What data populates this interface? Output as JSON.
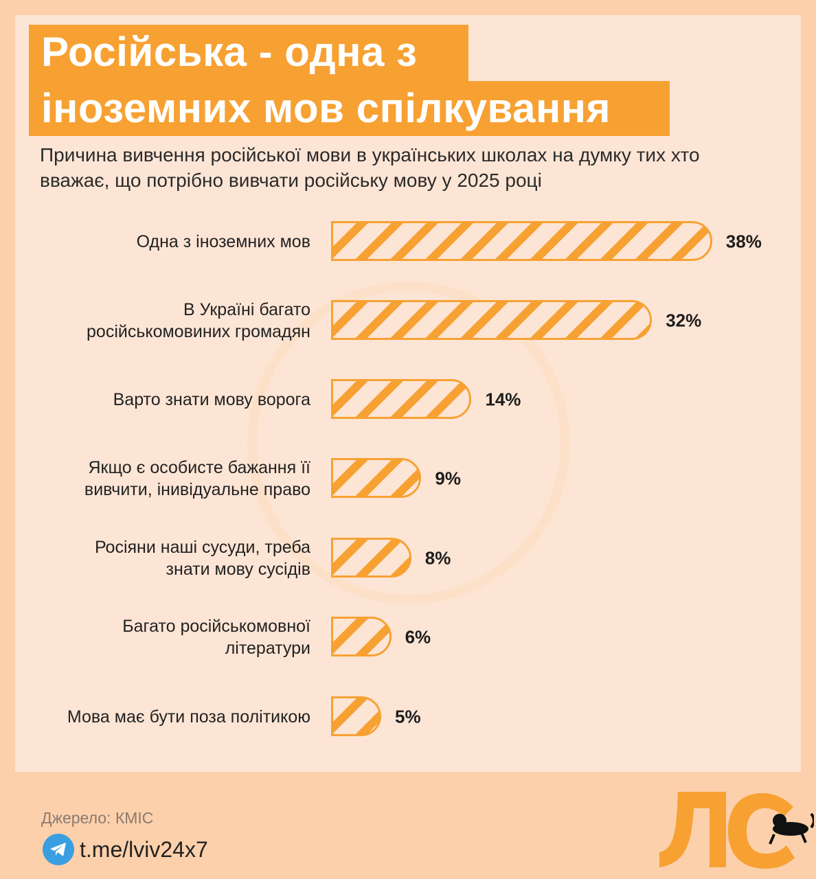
{
  "title_line1": "Російська - одна з",
  "title_line2": "іноземних мов спілкування",
  "subtitle": "Причина вивчення російської мови в українських школах на думку тих хто вважає, що потрібно вивчати російську мову у 2025 році",
  "footer": {
    "source": "Джерело: КМІС",
    "telegram": "t.me/lviv24x7",
    "logo_text": "ЛС"
  },
  "colors": {
    "accent": "#f7a133",
    "panel": "#fde5d5",
    "background": "#fcd0ab"
  },
  "chart_data": {
    "type": "bar",
    "orientation": "horizontal",
    "title": "Причина вивчення російської мови в українських школах",
    "categories": [
      "Одна з іноземних мов",
      "В Україні багато російськомовиних громадян",
      "Варто знати мову ворога",
      "Якщо є особисте бажання її вивчити, інивідуальне право",
      "Росіяни наші сусуди, треба знати мову сусідів",
      "Багато російськомовної літератури",
      "Мова має бути поза політикою"
    ],
    "label_lines": [
      [
        "Одна з іноземних мов"
      ],
      [
        "В Україні багато",
        "російськомовиних громадян"
      ],
      [
        "Варто знати мову ворога"
      ],
      [
        "Якщо є особисте бажання її",
        "вивчити, інивідуальне право"
      ],
      [
        "Росіяни наші сусуди, треба",
        "знати мову сусідів"
      ],
      [
        "Багато російськомовної",
        "літератури"
      ],
      [
        "Мова має бути поза політикою"
      ]
    ],
    "values": [
      38,
      32,
      14,
      9,
      8,
      6,
      5
    ],
    "value_labels": [
      "38%",
      "32%",
      "14%",
      "9%",
      "8%",
      "6%",
      "5%"
    ],
    "unit": "%"
  }
}
